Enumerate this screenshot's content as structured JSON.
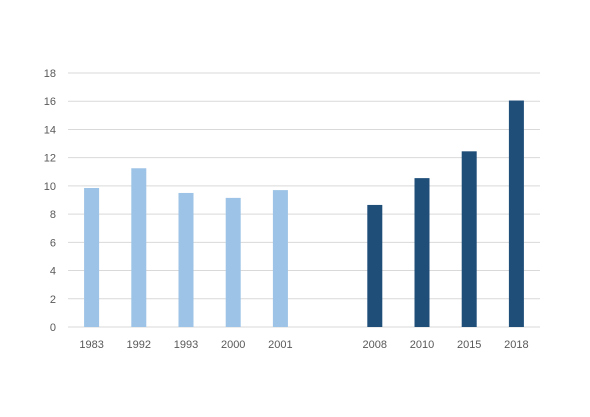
{
  "chart_data": {
    "type": "bar",
    "categories": [
      "1983",
      "1992",
      "1993",
      "2000",
      "2001",
      "",
      "2008",
      "2010",
      "2015",
      "2018"
    ],
    "values": [
      9.85,
      11.25,
      9.5,
      9.15,
      9.7,
      null,
      8.65,
      10.55,
      12.45,
      16.05
    ],
    "bar_colors": [
      "#9dc3e6",
      "#9dc3e6",
      "#9dc3e6",
      "#9dc3e6",
      "#9dc3e6",
      null,
      "#1f4e79",
      "#1f4e79",
      "#1f4e79",
      "#1f4e79"
    ],
    "y_ticks": [
      "0",
      "2",
      "4",
      "6",
      "8",
      "10",
      "12",
      "14",
      "16",
      "18"
    ],
    "ylim": [
      0,
      18
    ],
    "grid": true,
    "title": "",
    "xlabel": "",
    "ylabel": ""
  }
}
